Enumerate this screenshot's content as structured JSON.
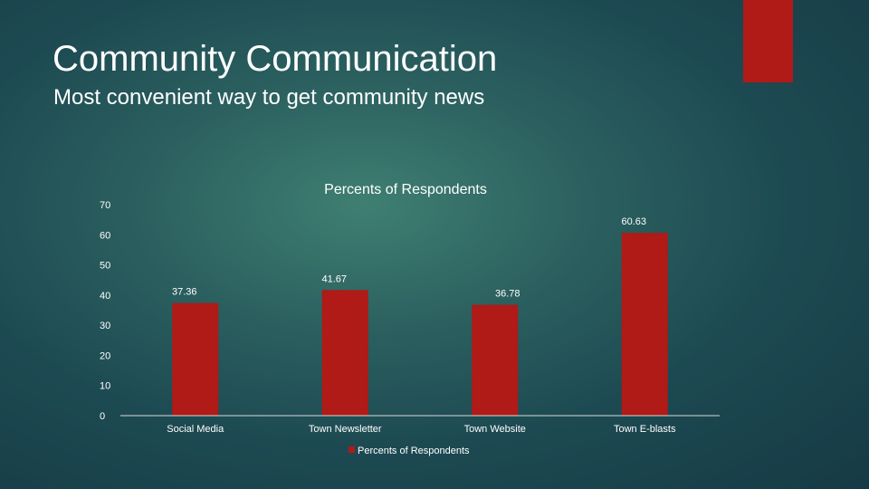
{
  "slide": {
    "title": "Community Communication",
    "subtitle": "Most convenient way to get community news"
  },
  "colors": {
    "accent": "#b01a17",
    "bar": "#b01a17",
    "axis": "#d9d9d9",
    "text": "#ffffff"
  },
  "chart_data": {
    "type": "bar",
    "title": "Percents of Respondents",
    "categories": [
      "Social Media",
      "Town Newsletter",
      "Town Website",
      "Town E-blasts"
    ],
    "series": [
      {
        "name": "Percents of Respondents",
        "values": [
          37.36,
          41.67,
          36.78,
          60.63
        ]
      }
    ],
    "data_labels": [
      "37.36",
      "41.67",
      "36.78",
      "60.63"
    ],
    "ylim": [
      0,
      70
    ],
    "yticks": [
      0,
      10,
      20,
      30,
      40,
      50,
      60,
      70
    ],
    "grid": false,
    "legend": "bottom",
    "xlabel": "",
    "ylabel": ""
  }
}
